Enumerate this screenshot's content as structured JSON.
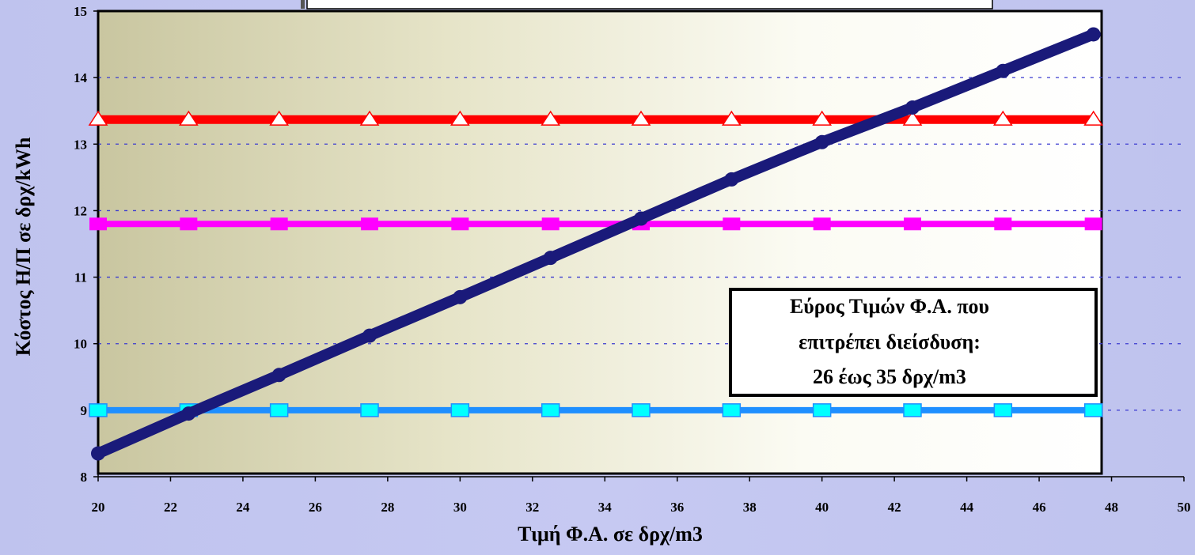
{
  "chart_data": {
    "type": "line",
    "title": "",
    "xlabel": "Τιμή Φ.Α. σε δρχ/m3",
    "ylabel": "Κόστος Η/Π σε δρχ/kWh",
    "xlim": [
      20,
      50
    ],
    "ylim": [
      8,
      15
    ],
    "x_ticks": [
      "20",
      "22",
      "24",
      "26",
      "28",
      "30",
      "32",
      "34",
      "36",
      "38",
      "40",
      "42",
      "44",
      "46",
      "48",
      "50"
    ],
    "y_ticks": [
      "8",
      "9",
      "10",
      "11",
      "12",
      "13",
      "14",
      "15"
    ],
    "grid": true,
    "legend": "none",
    "x": [
      20,
      22.5,
      25,
      27.5,
      30,
      32.5,
      35,
      37.5,
      40,
      42.5,
      45,
      47.5
    ],
    "series": [
      {
        "values": [
          8.35,
          8.95,
          9.53,
          10.12,
          10.7,
          11.29,
          11.88,
          12.47,
          13.03,
          13.55,
          14.1,
          14.65
        ],
        "color": "#1a1a7a",
        "marker": "circle"
      },
      {
        "values": [
          13.37,
          13.37,
          13.37,
          13.37,
          13.37,
          13.37,
          13.37,
          13.37,
          13.37,
          13.37,
          13.37,
          13.37
        ],
        "color": "#ff0000",
        "marker": "triangle"
      },
      {
        "values": [
          11.8,
          11.8,
          11.8,
          11.8,
          11.8,
          11.8,
          11.8,
          11.8,
          11.8,
          11.8,
          11.8,
          11.8
        ],
        "color": "#ff00ff",
        "marker": "square"
      },
      {
        "values": [
          9.0,
          9.0,
          9.0,
          9.0,
          9.0,
          9.0,
          9.0,
          9.0,
          9.0,
          9.0,
          9.0,
          9.0
        ],
        "color": "#1e8fff",
        "marker": "square-cyan"
      }
    ],
    "annotation": {
      "lines": [
        "Εύρος Τιμών Φ.Α. που",
        "επιτρέπει διείσδυση:",
        "26 έως 35 δρχ/m3"
      ]
    }
  }
}
